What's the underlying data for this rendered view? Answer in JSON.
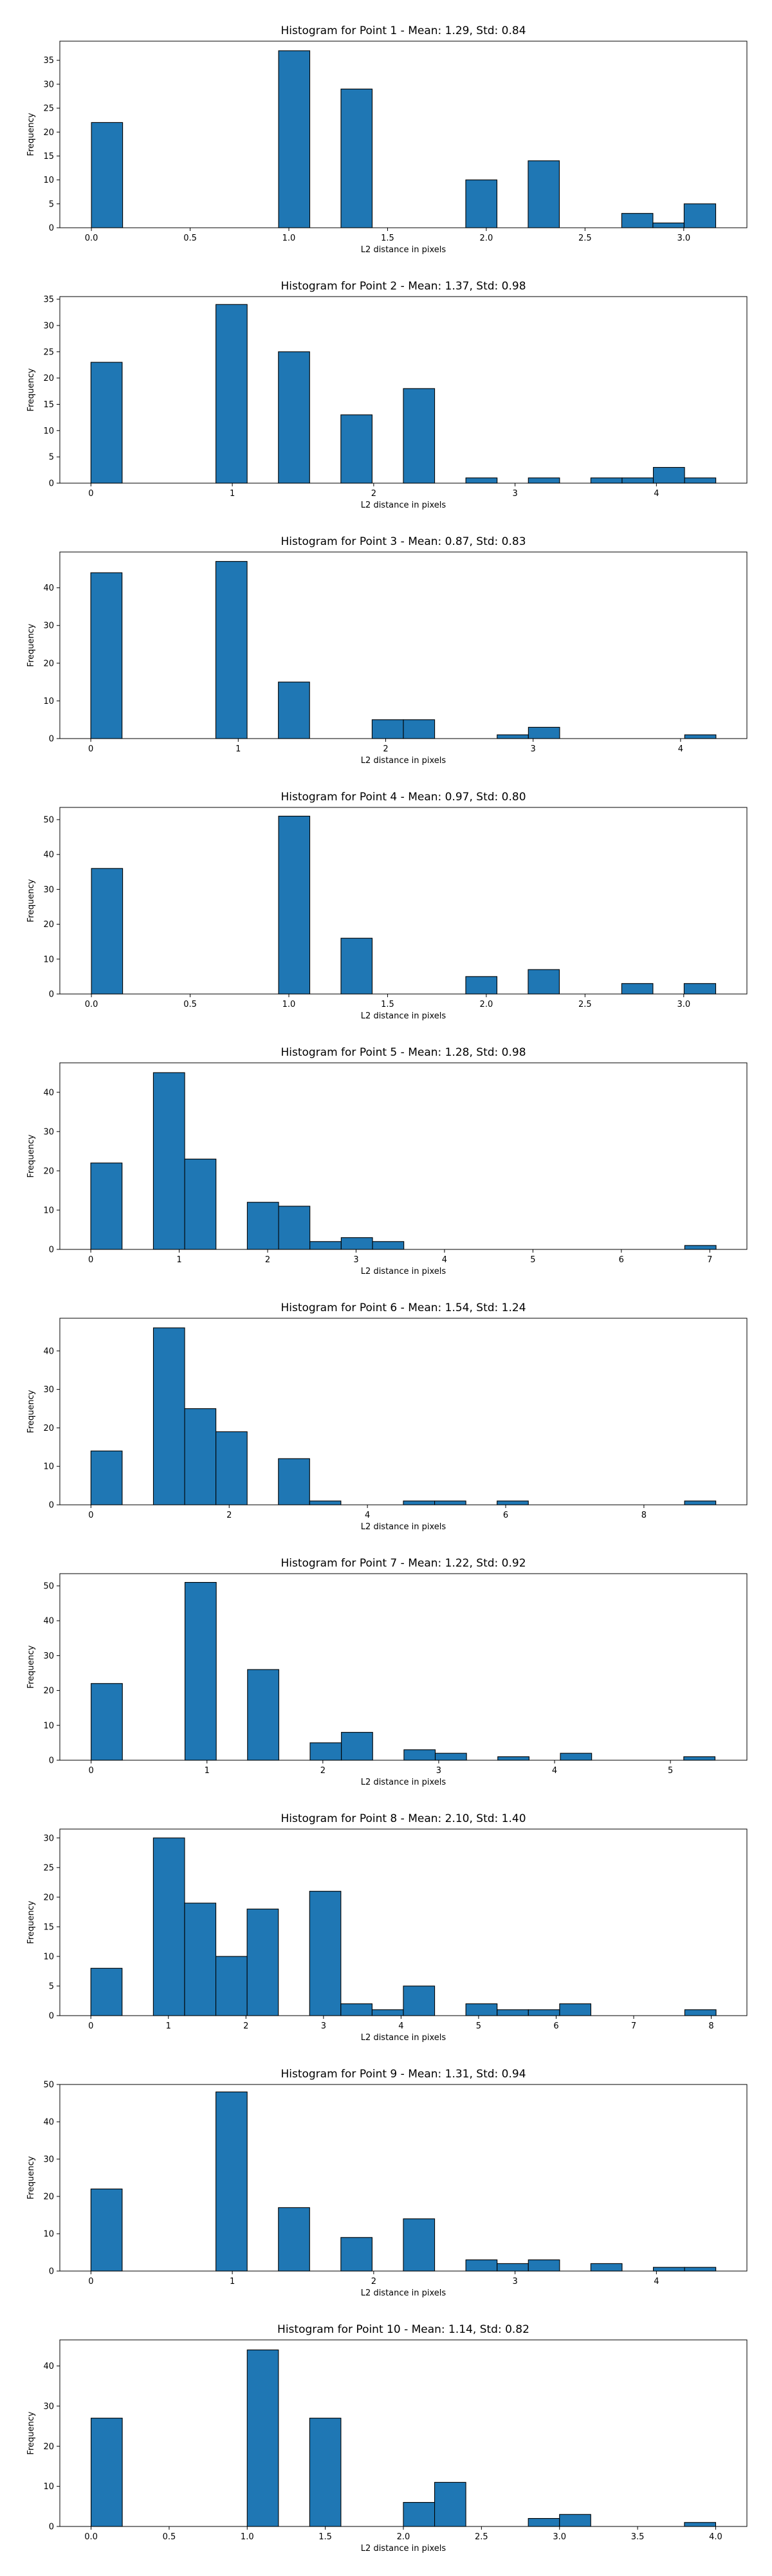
{
  "colors": {
    "bar_fill": "#1f77b4",
    "bar_edge": "#000000",
    "axes_edge": "#000000"
  },
  "chart_data": [
    {
      "type": "bar",
      "title": "Histogram for Point 1 - Mean: 1.29, Std: 0.84",
      "xlabel": "L2 distance in pixels",
      "ylabel": "Frequency",
      "xlim": [
        -0.16,
        3.32
      ],
      "ylim": [
        0,
        39
      ],
      "xticks": [
        0.0,
        0.5,
        1.0,
        1.5,
        2.0,
        2.5,
        3.0
      ],
      "xticklabels": [
        "0.0",
        "0.5",
        "1.0",
        "1.5",
        "2.0",
        "2.5",
        "3.0"
      ],
      "yticks": [
        0,
        5,
        10,
        15,
        20,
        25,
        30,
        35
      ],
      "yticklabels": [
        "0",
        "5",
        "10",
        "15",
        "20",
        "25",
        "30",
        "35"
      ],
      "grid": false,
      "bins": [
        {
          "x0": 0.0,
          "x1": 0.158,
          "count": 22
        },
        {
          "x0": 0.948,
          "x1": 1.106,
          "count": 37
        },
        {
          "x0": 1.264,
          "x1": 1.422,
          "count": 29
        },
        {
          "x0": 1.896,
          "x1": 2.054,
          "count": 10
        },
        {
          "x0": 2.212,
          "x1": 2.37,
          "count": 14
        },
        {
          "x0": 2.686,
          "x1": 2.844,
          "count": 3
        },
        {
          "x0": 2.844,
          "x1": 3.002,
          "count": 1
        },
        {
          "x0": 3.002,
          "x1": 3.162,
          "count": 5
        }
      ]
    },
    {
      "type": "bar",
      "title": "Histogram for Point 2 - Mean: 1.37, Std: 0.98",
      "xlabel": "L2 distance in pixels",
      "ylabel": "Frequency",
      "xlim": [
        -0.22,
        4.64
      ],
      "ylim": [
        0,
        35.5
      ],
      "xticks": [
        0,
        1,
        2,
        3,
        4
      ],
      "xticklabels": [
        "0",
        "1",
        "2",
        "3",
        "4"
      ],
      "yticks": [
        0,
        5,
        10,
        15,
        20,
        25,
        30,
        35
      ],
      "yticklabels": [
        "0",
        "5",
        "10",
        "15",
        "20",
        "25",
        "30",
        "35"
      ],
      "grid": false,
      "bins": [
        {
          "x0": 0.0,
          "x1": 0.221,
          "count": 23
        },
        {
          "x0": 0.884,
          "x1": 1.105,
          "count": 34
        },
        {
          "x0": 1.326,
          "x1": 1.547,
          "count": 25
        },
        {
          "x0": 1.768,
          "x1": 1.989,
          "count": 13
        },
        {
          "x0": 2.21,
          "x1": 2.431,
          "count": 18
        },
        {
          "x0": 2.652,
          "x1": 2.873,
          "count": 1
        },
        {
          "x0": 3.094,
          "x1": 3.315,
          "count": 1
        },
        {
          "x0": 3.536,
          "x1": 3.757,
          "count": 1
        },
        {
          "x0": 3.757,
          "x1": 3.978,
          "count": 1
        },
        {
          "x0": 3.978,
          "x1": 4.199,
          "count": 3
        },
        {
          "x0": 4.199,
          "x1": 4.42,
          "count": 1
        }
      ]
    },
    {
      "type": "bar",
      "title": "Histogram for Point 3 - Mean: 0.87, Std: 0.83",
      "xlabel": "L2 distance in pixels",
      "ylabel": "Frequency",
      "xlim": [
        -0.21,
        4.45
      ],
      "ylim": [
        0,
        49.5
      ],
      "xticks": [
        0,
        1,
        2,
        3,
        4
      ],
      "xticklabels": [
        "0",
        "1",
        "2",
        "3",
        "4"
      ],
      "yticks": [
        0,
        10,
        20,
        30,
        40
      ],
      "yticklabels": [
        "0",
        "10",
        "20",
        "30",
        "40"
      ],
      "grid": false,
      "bins": [
        {
          "x0": 0.0,
          "x1": 0.212,
          "count": 44
        },
        {
          "x0": 0.848,
          "x1": 1.06,
          "count": 47
        },
        {
          "x0": 1.272,
          "x1": 1.484,
          "count": 15
        },
        {
          "x0": 1.908,
          "x1": 2.12,
          "count": 5
        },
        {
          "x0": 2.12,
          "x1": 2.332,
          "count": 5
        },
        {
          "x0": 2.756,
          "x1": 2.968,
          "count": 1
        },
        {
          "x0": 2.968,
          "x1": 3.18,
          "count": 3
        },
        {
          "x0": 4.028,
          "x1": 4.24,
          "count": 1
        }
      ]
    },
    {
      "type": "bar",
      "title": "Histogram for Point 4 - Mean: 0.97, Std: 0.80",
      "xlabel": "L2 distance in pixels",
      "ylabel": "Frequency",
      "xlim": [
        -0.16,
        3.32
      ],
      "ylim": [
        0,
        53.5
      ],
      "xticks": [
        0.0,
        0.5,
        1.0,
        1.5,
        2.0,
        2.5,
        3.0
      ],
      "xticklabels": [
        "0.0",
        "0.5",
        "1.0",
        "1.5",
        "2.0",
        "2.5",
        "3.0"
      ],
      "yticks": [
        0,
        10,
        20,
        30,
        40,
        50
      ],
      "yticklabels": [
        "0",
        "10",
        "20",
        "30",
        "40",
        "50"
      ],
      "grid": false,
      "bins": [
        {
          "x0": 0.0,
          "x1": 0.158,
          "count": 36
        },
        {
          "x0": 0.948,
          "x1": 1.106,
          "count": 51
        },
        {
          "x0": 1.264,
          "x1": 1.422,
          "count": 16
        },
        {
          "x0": 1.896,
          "x1": 2.054,
          "count": 5
        },
        {
          "x0": 2.212,
          "x1": 2.37,
          "count": 7
        },
        {
          "x0": 2.686,
          "x1": 2.844,
          "count": 3
        },
        {
          "x0": 3.002,
          "x1": 3.162,
          "count": 3
        }
      ]
    },
    {
      "type": "bar",
      "title": "Histogram for Point 5 - Mean: 1.28, Std: 0.98",
      "xlabel": "L2 distance in pixels",
      "ylabel": "Frequency",
      "xlim": [
        -0.35,
        7.42
      ],
      "ylim": [
        0,
        47.5
      ],
      "xticks": [
        0,
        1,
        2,
        3,
        4,
        5,
        6,
        7
      ],
      "xticklabels": [
        "0",
        "1",
        "2",
        "3",
        "4",
        "5",
        "6",
        "7"
      ],
      "yticks": [
        0,
        10,
        20,
        30,
        40
      ],
      "yticklabels": [
        "0",
        "10",
        "20",
        "30",
        "40"
      ],
      "grid": false,
      "bins": [
        {
          "x0": 0.0,
          "x1": 0.354,
          "count": 22
        },
        {
          "x0": 0.708,
          "x1": 1.062,
          "count": 45
        },
        {
          "x0": 1.062,
          "x1": 1.416,
          "count": 23
        },
        {
          "x0": 1.77,
          "x1": 2.124,
          "count": 12
        },
        {
          "x0": 2.124,
          "x1": 2.478,
          "count": 11
        },
        {
          "x0": 2.478,
          "x1": 2.832,
          "count": 2
        },
        {
          "x0": 2.832,
          "x1": 3.186,
          "count": 3
        },
        {
          "x0": 3.186,
          "x1": 3.54,
          "count": 2
        },
        {
          "x0": 6.717,
          "x1": 7.071,
          "count": 1
        }
      ]
    },
    {
      "type": "bar",
      "title": "Histogram for Point 6 - Mean: 1.54, Std: 1.24",
      "xlabel": "L2 distance in pixels",
      "ylabel": "Frequency",
      "xlim": [
        -0.45,
        9.49
      ],
      "ylim": [
        0,
        48.5
      ],
      "xticks": [
        0,
        2,
        4,
        6,
        8
      ],
      "xticklabels": [
        "0",
        "2",
        "4",
        "6",
        "8"
      ],
      "yticks": [
        0,
        10,
        20,
        30,
        40
      ],
      "yticklabels": [
        "0",
        "10",
        "20",
        "30",
        "40"
      ],
      "grid": false,
      "bins": [
        {
          "x0": 0.0,
          "x1": 0.452,
          "count": 14
        },
        {
          "x0": 0.904,
          "x1": 1.356,
          "count": 46
        },
        {
          "x0": 1.356,
          "x1": 1.808,
          "count": 25
        },
        {
          "x0": 1.808,
          "x1": 2.26,
          "count": 19
        },
        {
          "x0": 2.712,
          "x1": 3.164,
          "count": 12
        },
        {
          "x0": 3.164,
          "x1": 3.616,
          "count": 1
        },
        {
          "x0": 4.52,
          "x1": 4.972,
          "count": 1
        },
        {
          "x0": 4.972,
          "x1": 5.424,
          "count": 1
        },
        {
          "x0": 5.876,
          "x1": 6.328,
          "count": 1
        },
        {
          "x0": 8.588,
          "x1": 9.04,
          "count": 1
        }
      ]
    },
    {
      "type": "bar",
      "title": "Histogram for Point 7 - Mean: 1.22, Std: 0.92",
      "xlabel": "L2 distance in pixels",
      "ylabel": "Frequency",
      "xlim": [
        -0.27,
        5.66
      ],
      "ylim": [
        0,
        53.5
      ],
      "xticks": [
        0,
        1,
        2,
        3,
        4,
        5
      ],
      "xticklabels": [
        "0",
        "1",
        "2",
        "3",
        "4",
        "5"
      ],
      "yticks": [
        0,
        10,
        20,
        30,
        40,
        50
      ],
      "yticklabels": [
        "0",
        "10",
        "20",
        "30",
        "40",
        "50"
      ],
      "grid": false,
      "bins": [
        {
          "x0": 0.0,
          "x1": 0.27,
          "count": 22
        },
        {
          "x0": 0.81,
          "x1": 1.08,
          "count": 51
        },
        {
          "x0": 1.35,
          "x1": 1.62,
          "count": 26
        },
        {
          "x0": 1.89,
          "x1": 2.16,
          "count": 5
        },
        {
          "x0": 2.16,
          "x1": 2.43,
          "count": 8
        },
        {
          "x0": 2.7,
          "x1": 2.97,
          "count": 3
        },
        {
          "x0": 2.97,
          "x1": 3.24,
          "count": 2
        },
        {
          "x0": 3.51,
          "x1": 3.78,
          "count": 1
        },
        {
          "x0": 4.05,
          "x1": 4.32,
          "count": 2
        },
        {
          "x0": 5.115,
          "x1": 5.385,
          "count": 1
        }
      ]
    },
    {
      "type": "bar",
      "title": "Histogram for Point 8 - Mean: 2.10, Std: 1.40",
      "xlabel": "L2 distance in pixels",
      "ylabel": "Frequency",
      "xlim": [
        -0.4,
        8.46
      ],
      "ylim": [
        0,
        31.5
      ],
      "xticks": [
        0,
        1,
        2,
        3,
        4,
        5,
        6,
        7,
        8
      ],
      "xticklabels": [
        "0",
        "1",
        "2",
        "3",
        "4",
        "5",
        "6",
        "7",
        "8"
      ],
      "yticks": [
        0,
        5,
        10,
        15,
        20,
        25,
        30
      ],
      "yticklabels": [
        "0",
        "5",
        "10",
        "15",
        "20",
        "25",
        "30"
      ],
      "grid": false,
      "bins": [
        {
          "x0": 0.0,
          "x1": 0.403,
          "count": 8
        },
        {
          "x0": 0.806,
          "x1": 1.209,
          "count": 30
        },
        {
          "x0": 1.209,
          "x1": 1.612,
          "count": 19
        },
        {
          "x0": 1.612,
          "x1": 2.015,
          "count": 10
        },
        {
          "x0": 2.015,
          "x1": 2.418,
          "count": 18
        },
        {
          "x0": 2.821,
          "x1": 3.224,
          "count": 21
        },
        {
          "x0": 3.224,
          "x1": 3.627,
          "count": 2
        },
        {
          "x0": 3.627,
          "x1": 4.03,
          "count": 1
        },
        {
          "x0": 4.03,
          "x1": 4.433,
          "count": 5
        },
        {
          "x0": 4.836,
          "x1": 5.239,
          "count": 2
        },
        {
          "x0": 5.239,
          "x1": 5.642,
          "count": 1
        },
        {
          "x0": 5.642,
          "x1": 6.045,
          "count": 1
        },
        {
          "x0": 6.045,
          "x1": 6.448,
          "count": 2
        },
        {
          "x0": 7.659,
          "x1": 8.062,
          "count": 1
        }
      ]
    },
    {
      "type": "bar",
      "title": "Histogram for Point 9 - Mean: 1.31, Std: 0.94",
      "xlabel": "L2 distance in pixels",
      "ylabel": "Frequency",
      "xlim": [
        -0.22,
        4.64
      ],
      "ylim": [
        0,
        50
      ],
      "xticks": [
        0,
        1,
        2,
        3,
        4
      ],
      "xticklabels": [
        "0",
        "1",
        "2",
        "3",
        "4"
      ],
      "yticks": [
        0,
        10,
        20,
        30,
        40,
        50
      ],
      "yticklabels": [
        "0",
        "10",
        "20",
        "30",
        "40",
        "50"
      ],
      "grid": false,
      "bins": [
        {
          "x0": 0.0,
          "x1": 0.221,
          "count": 22
        },
        {
          "x0": 0.884,
          "x1": 1.105,
          "count": 48
        },
        {
          "x0": 1.326,
          "x1": 1.547,
          "count": 17
        },
        {
          "x0": 1.768,
          "x1": 1.989,
          "count": 9
        },
        {
          "x0": 2.21,
          "x1": 2.431,
          "count": 14
        },
        {
          "x0": 2.652,
          "x1": 2.873,
          "count": 3
        },
        {
          "x0": 2.873,
          "x1": 3.094,
          "count": 2
        },
        {
          "x0": 3.094,
          "x1": 3.315,
          "count": 3
        },
        {
          "x0": 3.536,
          "x1": 3.757,
          "count": 2
        },
        {
          "x0": 3.978,
          "x1": 4.199,
          "count": 1
        },
        {
          "x0": 4.199,
          "x1": 4.42,
          "count": 1
        }
      ]
    },
    {
      "type": "bar",
      "title": "Histogram for Point 10 - Mean: 1.14, Std: 0.82",
      "xlabel": "L2 distance in pixels",
      "ylabel": "Frequency",
      "xlim": [
        -0.2,
        4.2
      ],
      "ylim": [
        0,
        46.5
      ],
      "xticks": [
        0.0,
        0.5,
        1.0,
        1.5,
        2.0,
        2.5,
        3.0,
        3.5,
        4.0
      ],
      "xticklabels": [
        "0.0",
        "0.5",
        "1.0",
        "1.5",
        "2.0",
        "2.5",
        "3.0",
        "3.5",
        "4.0"
      ],
      "yticks": [
        0,
        10,
        20,
        30,
        40
      ],
      "yticklabels": [
        "0",
        "10",
        "20",
        "30",
        "40"
      ],
      "grid": false,
      "bins": [
        {
          "x0": 0.0,
          "x1": 0.2,
          "count": 27
        },
        {
          "x0": 1.0,
          "x1": 1.2,
          "count": 44
        },
        {
          "x0": 1.4,
          "x1": 1.6,
          "count": 27
        },
        {
          "x0": 2.0,
          "x1": 2.2,
          "count": 6
        },
        {
          "x0": 2.2,
          "x1": 2.4,
          "count": 11
        },
        {
          "x0": 2.8,
          "x1": 3.0,
          "count": 2
        },
        {
          "x0": 3.0,
          "x1": 3.2,
          "count": 3
        },
        {
          "x0": 3.8,
          "x1": 4.0,
          "count": 1
        }
      ]
    }
  ]
}
